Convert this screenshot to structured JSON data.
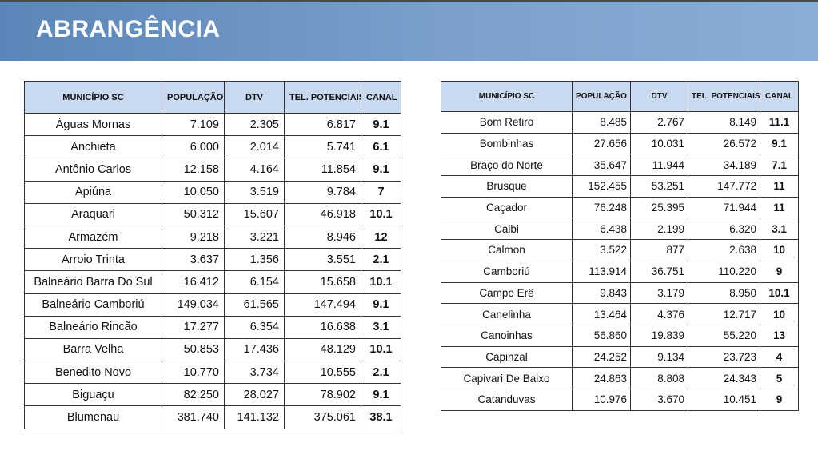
{
  "header": {
    "title": "ABRANGÊNCIA"
  },
  "tables": [
    {
      "columns": [
        "MUNICÍPIO SC",
        "POPULAÇÃO",
        "DTV",
        "TEL. POTENCIAIS",
        "CANAL"
      ],
      "rows": [
        [
          "Águas Mornas",
          "7.109",
          "2.305",
          "6.817",
          "9.1"
        ],
        [
          "Anchieta",
          "6.000",
          "2.014",
          "5.741",
          "6.1"
        ],
        [
          "Antônio Carlos",
          "12.158",
          "4.164",
          "11.854",
          "9.1"
        ],
        [
          "Apiúna",
          "10.050",
          "3.519",
          "9.784",
          "7"
        ],
        [
          "Araquari",
          "50.312",
          "15.607",
          "46.918",
          "10.1"
        ],
        [
          "Armazém",
          "9.218",
          "3.221",
          "8.946",
          "12"
        ],
        [
          "Arroio Trinta",
          "3.637",
          "1.356",
          "3.551",
          "2.1"
        ],
        [
          "Balneário Barra Do Sul",
          "16.412",
          "6.154",
          "15.658",
          "10.1"
        ],
        [
          "Balneário Camboriú",
          "149.034",
          "61.565",
          "147.494",
          "9.1"
        ],
        [
          "Balneário Rincão",
          "17.277",
          "6.354",
          "16.638",
          "3.1"
        ],
        [
          "Barra Velha",
          "50.853",
          "17.436",
          "48.129",
          "10.1"
        ],
        [
          "Benedito Novo",
          "10.770",
          "3.734",
          "10.555",
          "2.1"
        ],
        [
          "Biguaçu",
          "82.250",
          "28.027",
          "78.902",
          "9.1"
        ],
        [
          "Blumenau",
          "381.740",
          "141.132",
          "375.061",
          "38.1"
        ]
      ]
    },
    {
      "columns": [
        "MUNICÍPIO SC",
        "POPULAÇÃO",
        "DTV",
        "TEL. POTENCIAIS",
        "CANAL"
      ],
      "rows": [
        [
          "Bom Retiro",
          "8.485",
          "2.767",
          "8.149",
          "11.1"
        ],
        [
          "Bombinhas",
          "27.656",
          "10.031",
          "26.572",
          "9.1"
        ],
        [
          "Braço do Norte",
          "35.647",
          "11.944",
          "34.189",
          "7.1"
        ],
        [
          "Brusque",
          "152.455",
          "53.251",
          "147.772",
          "11"
        ],
        [
          "Caçador",
          "76.248",
          "25.395",
          "71.944",
          "11"
        ],
        [
          "Caibi",
          "6.438",
          "2.199",
          "6.320",
          "3.1"
        ],
        [
          "Calmon",
          "3.522",
          "877",
          "2.638",
          "10"
        ],
        [
          "Camboriú",
          "113.914",
          "36.751",
          "110.220",
          "9"
        ],
        [
          "Campo Erê",
          "9.843",
          "3.179",
          "8.950",
          "10.1"
        ],
        [
          "Canelinha",
          "13.464",
          "4.376",
          "12.717",
          "10"
        ],
        [
          "Canoinhas",
          "56.860",
          "19.839",
          "55.220",
          "13"
        ],
        [
          "Capinzal",
          "24.252",
          "9.134",
          "23.723",
          "4"
        ],
        [
          "Capivari De Baixo",
          "24.863",
          "8.808",
          "24.343",
          "5"
        ],
        [
          "Catanduvas",
          "10.976",
          "3.670",
          "10.451",
          "9"
        ]
      ]
    }
  ]
}
